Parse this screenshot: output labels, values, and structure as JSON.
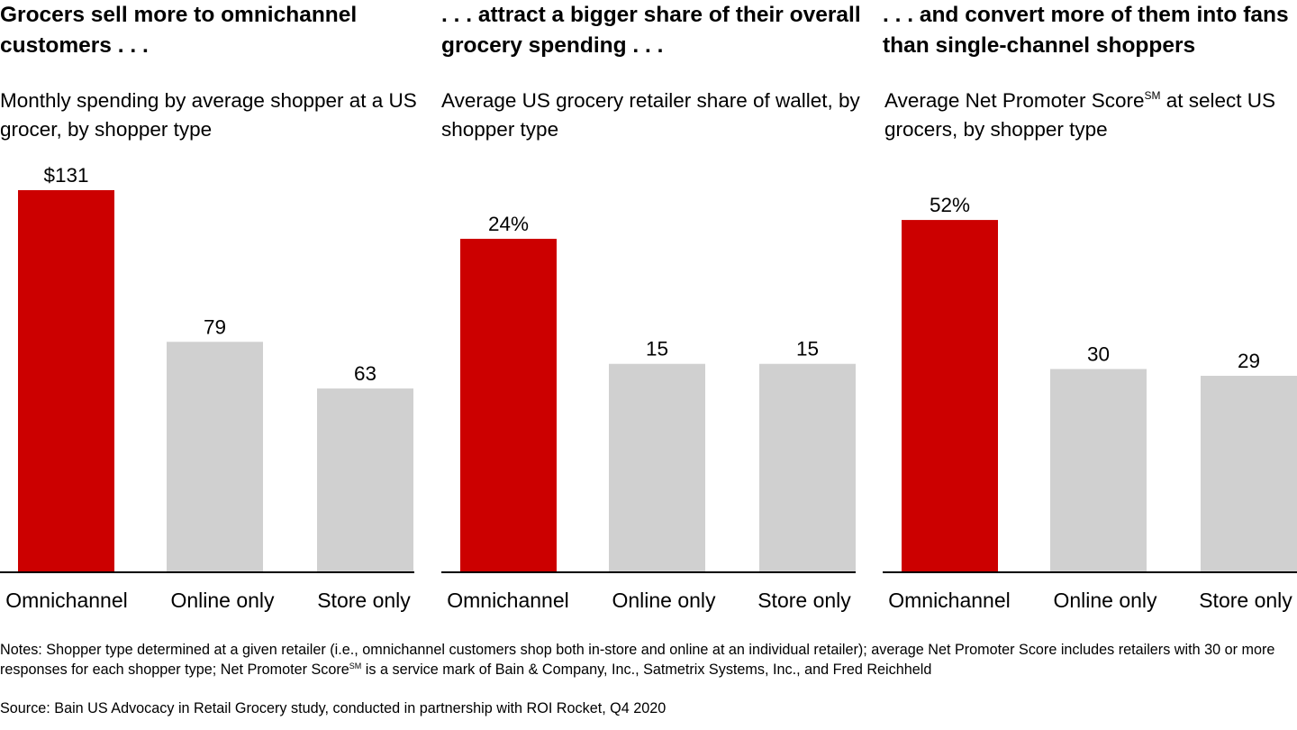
{
  "panels": [
    {
      "title": "Grocers sell more to omnichannel customers . . .",
      "subtitle": "Monthly spending by average shopper at a US grocer, by shopper type"
    },
    {
      "title": ". . . attract a bigger share of their overall grocery spending . . .",
      "subtitle": "Average US grocery retailer share of wallet, by shopper type"
    },
    {
      "title": ". . . and convert more of them into fans than single-channel shoppers",
      "subtitle_before": "Average Net Promoter Score",
      "subtitle_sup": "SM",
      "subtitle_after": " at select US grocers, by shopper type"
    }
  ],
  "colors": {
    "highlight": "#cc0000",
    "neutral": "#d0d0d0",
    "axis": "#000000"
  },
  "chart_data": [
    {
      "type": "bar",
      "categories": [
        "Omnichannel",
        "Online only",
        "Store only"
      ],
      "values": [
        131,
        79,
        63
      ],
      "value_labels": [
        "$131",
        "79",
        "63"
      ],
      "title": "Monthly spending by average shopper at a US grocer, by shopper type",
      "ylim": [
        0,
        131
      ],
      "bar_colors": [
        "#cc0000",
        "#d0d0d0",
        "#d0d0d0"
      ]
    },
    {
      "type": "bar",
      "categories": [
        "Omnichannel",
        "Online only",
        "Store only"
      ],
      "values": [
        24,
        15,
        15
      ],
      "value_labels": [
        "24%",
        "15",
        "15"
      ],
      "title": "Average US grocery retailer share of wallet, by shopper type",
      "ylim": [
        0,
        27.5
      ],
      "bar_colors": [
        "#cc0000",
        "#d0d0d0",
        "#d0d0d0"
      ]
    },
    {
      "type": "bar",
      "categories": [
        "Omnichannel",
        "Online only",
        "Store only"
      ],
      "values": [
        52,
        30,
        29
      ],
      "value_labels": [
        "52%",
        "30",
        "29"
      ],
      "title": "Average Net Promoter Score at select US grocers, by shopper type",
      "ylim": [
        0,
        56.4
      ],
      "bar_colors": [
        "#cc0000",
        "#d0d0d0",
        "#d0d0d0"
      ]
    }
  ],
  "notes": {
    "part1": "Notes: Shopper type determined at a given retailer (i.e., omnichannel customers shop both in-store and online at an individual retailer); average Net Promoter Score includes retailers with 30 or more responses for each shopper type; Net Promoter Score",
    "sup": "SM",
    "part2": " is a service mark of Bain & Company, Inc., Satmetrix Systems, Inc., and Fred Reichheld"
  },
  "source": "Source: Bain US Advocacy in Retail Grocery study, conducted in partnership with ROI Rocket, Q4 2020"
}
